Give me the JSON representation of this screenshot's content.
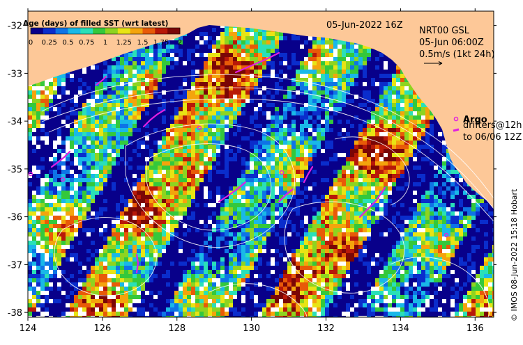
{
  "colorbar": {
    "title": "Age (days) of filled SST (wrt latest)",
    "ticks": [
      "0",
      "0.25",
      "0.5",
      "0.75",
      "1",
      "1.25",
      "1.5",
      "1.75",
      "2"
    ],
    "colors": [
      "#08008a",
      "#0a2dcc",
      "#0e74e6",
      "#19b8e8",
      "#2ae0b8",
      "#34c83c",
      "#8ed420",
      "#e8e414",
      "#f4a40c",
      "#e85a08",
      "#b81808",
      "#7a0606"
    ]
  },
  "header": {
    "datetime": "05-Jun-2022 16Z",
    "product": "NRT00 GSL",
    "velocity_time": "05-Jun 06:00Z",
    "velocity_scale": "0.5m/s (1kt 24h)"
  },
  "legend": {
    "argo": "Argo",
    "drifters_line1": "drifters@12h",
    "drifters_line2": "to 06/06 12Z",
    "argo_color": "#e020e0",
    "drifter_color": "#e020e0"
  },
  "axes": {
    "x_ticks": [
      "124",
      "126",
      "128",
      "130",
      "132",
      "134",
      "136"
    ],
    "y_ticks": [
      "-32",
      "-33",
      "-34",
      "-35",
      "-36",
      "-37",
      "-38"
    ]
  },
  "credit": "© IMOS 08-Jun-2022 15:18 Hobart",
  "colors": {
    "land": "#fdc898",
    "missing": "#ffffff",
    "contour": "#ffffff",
    "frame": "#000000"
  }
}
